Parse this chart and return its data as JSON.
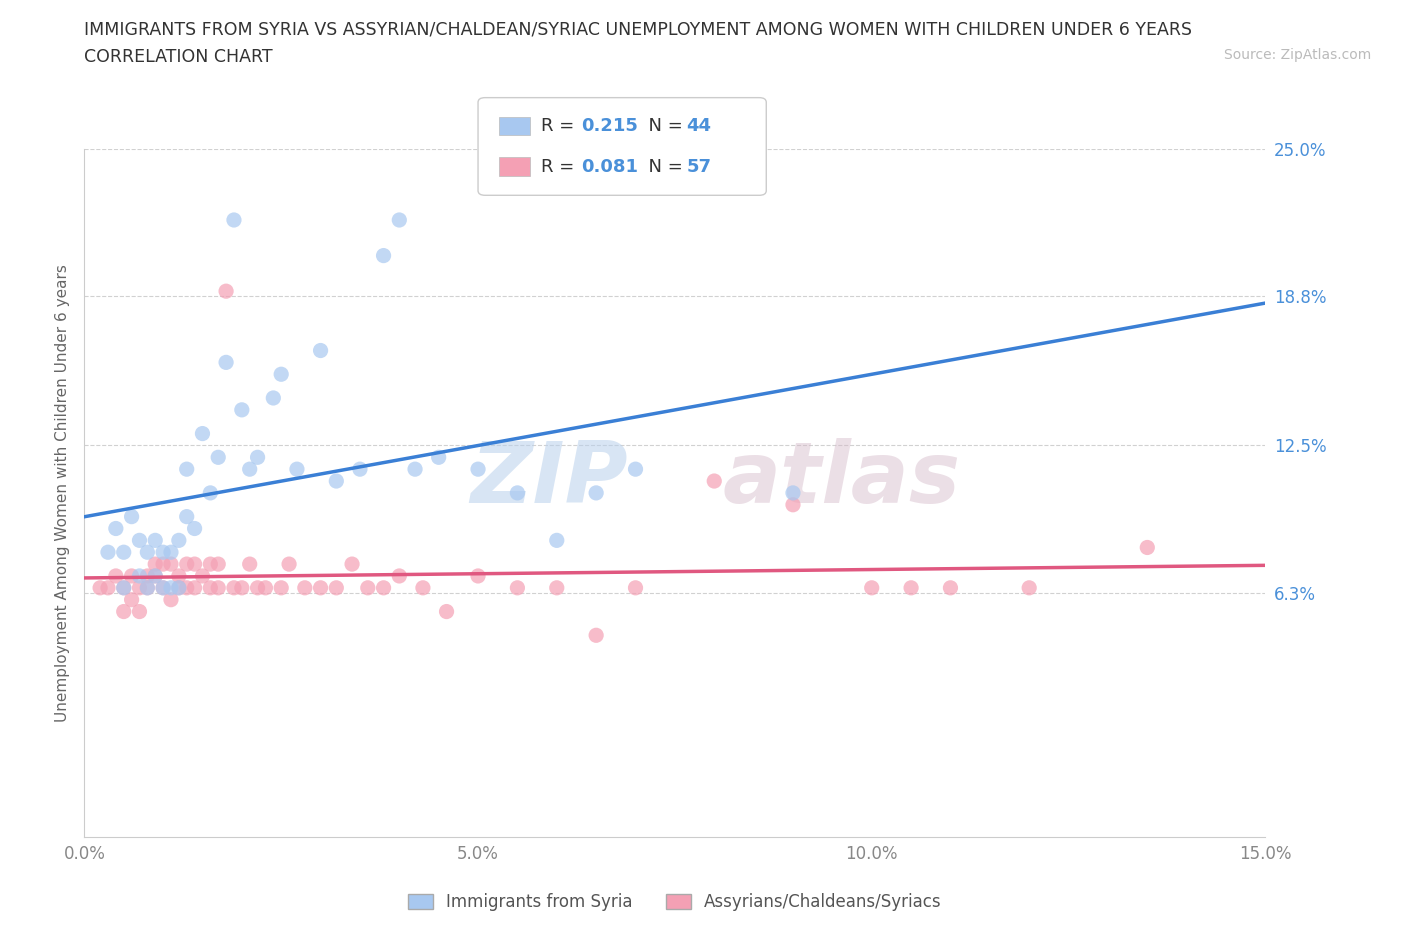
{
  "title_line1": "IMMIGRANTS FROM SYRIA VS ASSYRIAN/CHALDEAN/SYRIAC UNEMPLOYMENT AMONG WOMEN WITH CHILDREN UNDER 6 YEARS",
  "title_line2": "CORRELATION CHART",
  "source_text": "Source: ZipAtlas.com",
  "ylabel": "Unemployment Among Women with Children Under 6 years",
  "xlim": [
    0.0,
    0.15
  ],
  "ylim": [
    -0.04,
    0.25
  ],
  "yticks": [
    0.063,
    0.125,
    0.188,
    0.25
  ],
  "ytick_labels": [
    "6.3%",
    "12.5%",
    "18.8%",
    "25.0%"
  ],
  "xticks": [
    0.0,
    0.05,
    0.1,
    0.15
  ],
  "xtick_labels": [
    "0.0%",
    "5.0%",
    "10.0%",
    "15.0%"
  ],
  "watermark_zip": "ZIP",
  "watermark_atlas": "atlas",
  "legend_label1": "Immigrants from Syria",
  "legend_label2": "Assyrians/Chaldeans/Syriacs",
  "R1": "0.215",
  "N1": "44",
  "R2": "0.081",
  "N2": "57",
  "color1": "#a8c8f0",
  "color2": "#f4a0b4",
  "trendline1_color": "#3a7fd5",
  "trendline2_color": "#e05880",
  "trendline1_dash": "--",
  "trendline2_dash": "-",
  "background_color": "#ffffff",
  "grid_color": "#cccccc",
  "title_color": "#333333",
  "axis_label_color": "#4a90d9",
  "scatter1_x": [
    0.003,
    0.004,
    0.005,
    0.005,
    0.006,
    0.007,
    0.007,
    0.008,
    0.008,
    0.009,
    0.009,
    0.01,
    0.01,
    0.011,
    0.011,
    0.012,
    0.012,
    0.013,
    0.013,
    0.014,
    0.015,
    0.016,
    0.017,
    0.018,
    0.019,
    0.02,
    0.021,
    0.022,
    0.024,
    0.025,
    0.027,
    0.03,
    0.032,
    0.035,
    0.038,
    0.04,
    0.042,
    0.045,
    0.05,
    0.055,
    0.06,
    0.065,
    0.07,
    0.09
  ],
  "scatter1_y": [
    0.08,
    0.09,
    0.065,
    0.08,
    0.095,
    0.07,
    0.085,
    0.065,
    0.08,
    0.07,
    0.085,
    0.065,
    0.08,
    0.065,
    0.08,
    0.065,
    0.085,
    0.095,
    0.115,
    0.09,
    0.13,
    0.105,
    0.12,
    0.16,
    0.22,
    0.14,
    0.115,
    0.12,
    0.145,
    0.155,
    0.115,
    0.165,
    0.11,
    0.115,
    0.205,
    0.22,
    0.115,
    0.12,
    0.115,
    0.105,
    0.085,
    0.105,
    0.115,
    0.105
  ],
  "scatter2_x": [
    0.002,
    0.003,
    0.004,
    0.005,
    0.005,
    0.006,
    0.006,
    0.007,
    0.007,
    0.008,
    0.008,
    0.009,
    0.009,
    0.01,
    0.01,
    0.011,
    0.011,
    0.012,
    0.012,
    0.013,
    0.013,
    0.014,
    0.014,
    0.015,
    0.016,
    0.016,
    0.017,
    0.017,
    0.018,
    0.019,
    0.02,
    0.021,
    0.022,
    0.023,
    0.025,
    0.026,
    0.028,
    0.03,
    0.032,
    0.034,
    0.036,
    0.038,
    0.04,
    0.043,
    0.046,
    0.05,
    0.055,
    0.06,
    0.065,
    0.07,
    0.08,
    0.09,
    0.1,
    0.105,
    0.11,
    0.12,
    0.135
  ],
  "scatter2_y": [
    0.065,
    0.065,
    0.07,
    0.055,
    0.065,
    0.06,
    0.07,
    0.065,
    0.055,
    0.07,
    0.065,
    0.07,
    0.075,
    0.065,
    0.075,
    0.06,
    0.075,
    0.065,
    0.07,
    0.065,
    0.075,
    0.065,
    0.075,
    0.07,
    0.065,
    0.075,
    0.065,
    0.075,
    0.19,
    0.065,
    0.065,
    0.075,
    0.065,
    0.065,
    0.065,
    0.075,
    0.065,
    0.065,
    0.065,
    0.075,
    0.065,
    0.065,
    0.07,
    0.065,
    0.055,
    0.07,
    0.065,
    0.065,
    0.045,
    0.065,
    0.11,
    0.1,
    0.065,
    0.065,
    0.065,
    0.065,
    0.082
  ]
}
